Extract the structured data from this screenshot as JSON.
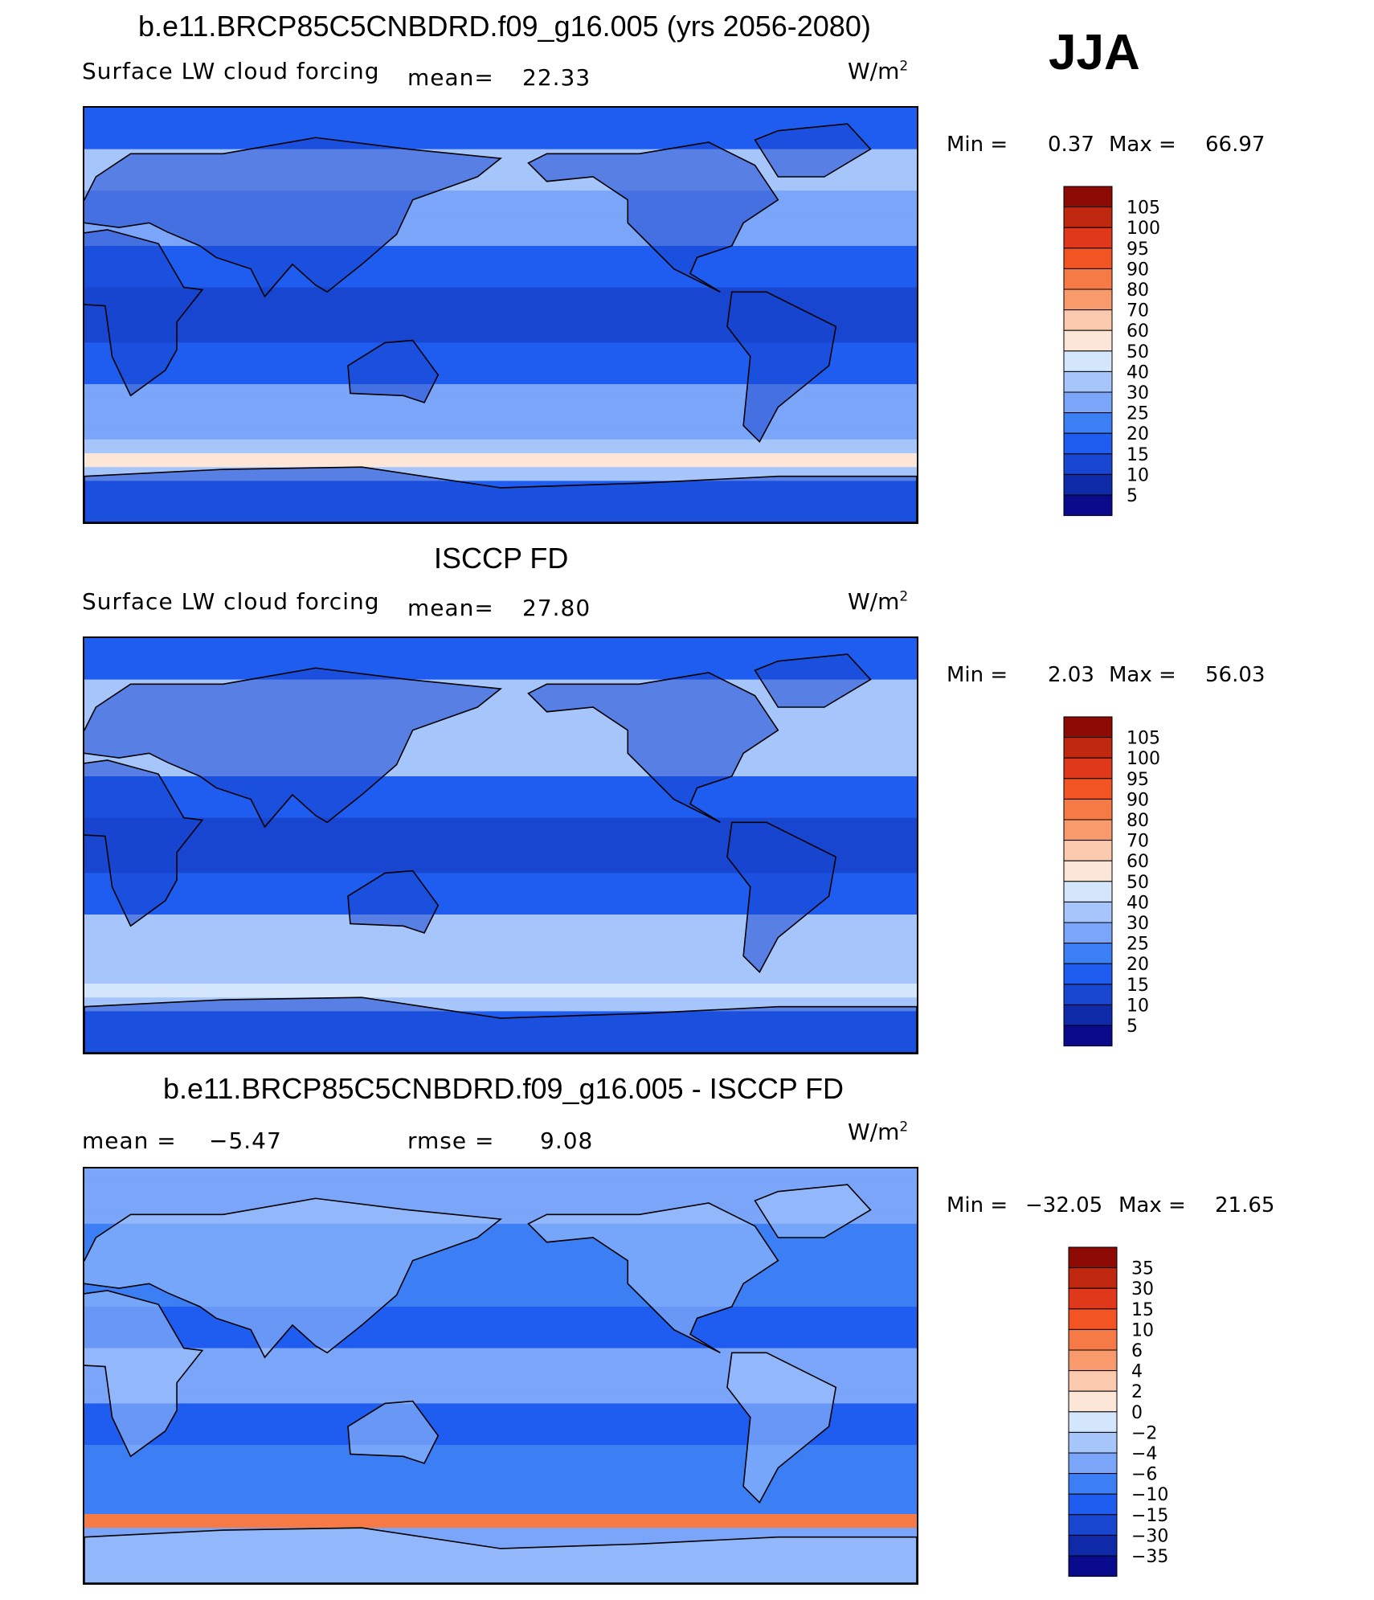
{
  "season": "JJA",
  "colors": {
    "abs_scale": [
      "#0a0a8c",
      "#0f2aa8",
      "#1846d0",
      "#1f5df0",
      "#3c7ff5",
      "#7aa5f8",
      "#a6c6fb",
      "#d4e6fb",
      "#fbe6d8",
      "#fbc9ae",
      "#f99a6c",
      "#f67a46",
      "#f25424",
      "#e0381a",
      "#c12810",
      "#8e0a04"
    ],
    "diff_scale": [
      "#0a0a8c",
      "#0f2aa8",
      "#1846d0",
      "#1f5df0",
      "#3c7ff5",
      "#7aa5f8",
      "#a6c6fb",
      "#d4e6fb",
      "#fbe6d8",
      "#fbc9ae",
      "#f99a6c",
      "#f67a46",
      "#f25424",
      "#e0381a",
      "#c12810",
      "#8e0a04"
    ]
  },
  "panels": [
    {
      "id": "model",
      "title": "b.e11.BRCP85C5CNBDRD.f09_g16.005 (yrs 2056-2080)",
      "variable": "Surface LW cloud forcing",
      "mean_label": "mean=",
      "mean_value": "22.33",
      "units": "W/m",
      "units_exp": "2",
      "min_label": "Min =",
      "min_value": "0.37",
      "max_label": "Max =",
      "max_value": "66.97",
      "levels": [
        "105",
        "100",
        "95",
        "90",
        "80",
        "70",
        "60",
        "50",
        "40",
        "30",
        "25",
        "20",
        "15",
        "10",
        "5"
      ],
      "map_bias": 0.0
    },
    {
      "id": "obs",
      "title": "ISCCP FD",
      "variable": "Surface LW cloud forcing",
      "mean_label": "mean=",
      "mean_value": "27.80",
      "units": "W/m",
      "units_exp": "2",
      "min_label": "Min =",
      "min_value": "2.03",
      "max_label": "Max =",
      "max_value": "56.03",
      "levels": [
        "105",
        "100",
        "95",
        "90",
        "80",
        "70",
        "60",
        "50",
        "40",
        "30",
        "25",
        "20",
        "15",
        "10",
        "5"
      ],
      "map_bias": 0.0
    },
    {
      "id": "diff",
      "title": "b.e11.BRCP85C5CNBDRD.f09_g16.005 - ISCCP FD",
      "mean_label": "mean =",
      "mean_value": "−5.47",
      "rmse_label": "rmse =",
      "rmse_value": "9.08",
      "units": "W/m",
      "units_exp": "2",
      "min_label": "Min =",
      "min_value": "−32.05",
      "max_label": "Max =",
      "max_value": "21.65",
      "levels": [
        "35",
        "30",
        "15",
        "10",
        "6",
        "4",
        "2",
        "0",
        "−2",
        "−4",
        "−6",
        "−10",
        "−15",
        "−30",
        "−35"
      ],
      "map_bias": 0.0
    }
  ]
}
